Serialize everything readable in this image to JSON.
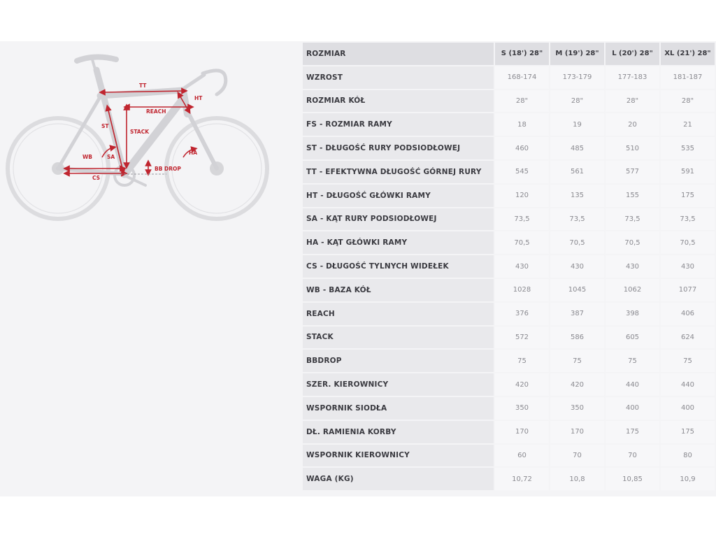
{
  "diagram": {
    "labels": {
      "tt": "TT",
      "ht": "HT",
      "reach": "REACH",
      "st": "ST",
      "stack": "STACK",
      "sa": "SA",
      "wb": "WB",
      "ha": "HA",
      "bb_drop": "BB DROP",
      "cs": "CS"
    }
  },
  "table": {
    "header": {
      "label": "ROZMIAR",
      "sizes": [
        "S (18') 28\"",
        "M (19') 28\"",
        "L (20') 28\"",
        "XL (21') 28\""
      ]
    },
    "rows": [
      {
        "label": "WZROST",
        "values": [
          "168-174",
          "173-179",
          "177-183",
          "181-187"
        ]
      },
      {
        "label": "ROZMIAR KÓŁ",
        "values": [
          "28\"",
          "28\"",
          "28\"",
          "28\""
        ]
      },
      {
        "label": "FS - ROZMIAR RAMY",
        "values": [
          "18",
          "19",
          "20",
          "21"
        ]
      },
      {
        "label": "ST - DŁUGOŚĆ RURY PODSIODŁOWEJ",
        "values": [
          "460",
          "485",
          "510",
          "535"
        ]
      },
      {
        "label": "TT - EFEKTYWNA DŁUGOŚĆ GÓRNEJ RURY",
        "values": [
          "545",
          "561",
          "577",
          "591"
        ]
      },
      {
        "label": "HT - DŁUGOŚĆ GŁÓWKI RAMY",
        "values": [
          "120",
          "135",
          "155",
          "175"
        ]
      },
      {
        "label": "SA - KĄT RURY PODSIODŁOWEJ",
        "values": [
          "73,5",
          "73,5",
          "73,5",
          "73,5"
        ]
      },
      {
        "label": "HA - KĄT GŁÓWKI RAMY",
        "values": [
          "70,5",
          "70,5",
          "70,5",
          "70,5"
        ]
      },
      {
        "label": "CS - DŁUGOŚĆ TYLNYCH WIDEŁEK",
        "values": [
          "430",
          "430",
          "430",
          "430"
        ]
      },
      {
        "label": "WB - BAZA KÓŁ",
        "values": [
          "1028",
          "1045",
          "1062",
          "1077"
        ]
      },
      {
        "label": "REACH",
        "values": [
          "376",
          "387",
          "398",
          "406"
        ]
      },
      {
        "label": "STACK",
        "values": [
          "572",
          "586",
          "605",
          "624"
        ]
      },
      {
        "label": "BBDROP",
        "values": [
          "75",
          "75",
          "75",
          "75"
        ]
      },
      {
        "label": "SZER. KIEROWNICY",
        "values": [
          "420",
          "420",
          "440",
          "440"
        ]
      },
      {
        "label": "WSPORNIK SIODŁA",
        "values": [
          "350",
          "350",
          "400",
          "400"
        ]
      },
      {
        "label": "DŁ. RAMIENIA KORBY",
        "values": [
          "170",
          "170",
          "175",
          "175"
        ]
      },
      {
        "label": "WSPORNIK KIEROWNICY",
        "values": [
          "60",
          "70",
          "70",
          "80"
        ]
      },
      {
        "label": "WAGA (KG)",
        "values": [
          "10,72",
          "10,8",
          "10,85",
          "10,9"
        ]
      }
    ]
  }
}
